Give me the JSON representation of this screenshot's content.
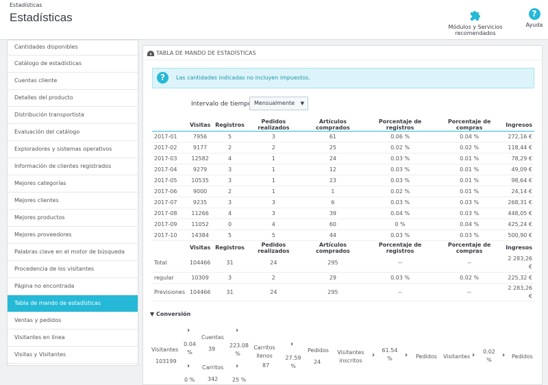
{
  "header": {
    "breadcrumb": "Estadísticas",
    "title": "Estadísticas",
    "modules_label": "Módulos y Servicios recomendados",
    "help_label": "Ayuda"
  },
  "sidebar": {
    "items": [
      {
        "label": "Cantidades disponibles"
      },
      {
        "label": "Catálogo de estadísticas"
      },
      {
        "label": "Cuentas cliente"
      },
      {
        "label": "Detalles del producto"
      },
      {
        "label": "Distribución transportista"
      },
      {
        "label": "Evaluación del catálogo"
      },
      {
        "label": "Exploradores y sistemas operativos"
      },
      {
        "label": "Información de clientes registrados"
      },
      {
        "label": "Mejores categorías"
      },
      {
        "label": "Mejores clientes"
      },
      {
        "label": "Mejores productos"
      },
      {
        "label": "Mejores proveedores"
      },
      {
        "label": "Palabras clave en el motor de búsqueda"
      },
      {
        "label": "Procedencia de los visitantes"
      },
      {
        "label": "Página no encontrada"
      },
      {
        "label": "Tabla de mando de estadísticas"
      },
      {
        "label": "Ventas y pedidos"
      },
      {
        "label": "Visitantes en línea"
      },
      {
        "label": "Visitas y Visitantes"
      }
    ],
    "active_index": 15
  },
  "panel": {
    "title": "Tabla de mando de estadísticas",
    "alert": "Las cantidades indicadas no incluyen impuestos.",
    "interval_label": "Intervalo de tiempo",
    "interval_value": "Mensualmente"
  },
  "table": {
    "headers": [
      "",
      "Visitas",
      "Registros",
      "Pedidos realizados",
      "Artículos comprados",
      "Porcentaje de registros",
      "Porcentaje de compras",
      "Ingresos"
    ],
    "rows": [
      [
        "2017-01",
        "7956",
        "5",
        "3",
        "61",
        "0.06 %",
        "0.04 %",
        "272,16 €"
      ],
      [
        "2017-02",
        "9177",
        "2",
        "2",
        "25",
        "0.02 %",
        "0.02 %",
        "118,44 €"
      ],
      [
        "2017-03",
        "12582",
        "4",
        "1",
        "24",
        "0.03 %",
        "0.01 %",
        "78,29 €"
      ],
      [
        "2017-04",
        "9279",
        "3",
        "1",
        "12",
        "0.03 %",
        "0.01 %",
        "49,09 €"
      ],
      [
        "2017-05",
        "10535",
        "3",
        "1",
        "23",
        "0.03 %",
        "0.01 %",
        "98,64 €"
      ],
      [
        "2017-06",
        "9000",
        "2",
        "1",
        "1",
        "0.02 %",
        "0.01 %",
        "24,14 €"
      ],
      [
        "2017-07",
        "9235",
        "3",
        "3",
        "6",
        "0.03 %",
        "0.03 %",
        "268,31 €"
      ],
      [
        "2017-08",
        "11266",
        "4",
        "3",
        "39",
        "0.04 %",
        "0.03 %",
        "448,05 €"
      ],
      [
        "2017-09",
        "11052",
        "0",
        "4",
        "60",
        "0 %",
        "0.04 %",
        "425,24 €"
      ],
      [
        "2017-10",
        "14384",
        "5",
        "5",
        "44",
        "0.03 %",
        "0.03 %",
        "500,90 €"
      ]
    ],
    "totals": [
      [
        "Total",
        "104466",
        "31",
        "24",
        "295",
        "--",
        "--",
        "2 283,26 €"
      ],
      [
        "regular",
        "10309",
        "3",
        "2",
        "29",
        "0.03 %",
        "0.02 %",
        "225,32 €"
      ],
      [
        "Previsiones",
        "104466",
        "31",
        "24",
        "295",
        "--",
        "--",
        "2 283,26 €"
      ]
    ]
  },
  "conversion": {
    "title": "Conversión",
    "visitantes_label": "Visitantes",
    "visitantes_value": "103199",
    "pct_to_cuentas": "0.04 %",
    "cuentas_label": "Cuentas",
    "cuentas_value": "39",
    "pct_cuentas_carritos": "223.08 %",
    "pct_to_carritos": "0 %",
    "carritos_label": "Carritos",
    "carritos_value": "342",
    "pct_carritos_llenos": "25 %",
    "carritos_llenos_label": "Carritos llenos",
    "carritos_llenos_value": "87",
    "pct_llenos_pedidos": "27.59 %",
    "pedidos_label": "Pedidos",
    "pedidos_value": "24",
    "inscritos_label": "Visitantes inscritos",
    "pct_inscritos": "61.54 %",
    "pedidos_label_2": "Pedidos",
    "visitantes_label_2": "Visitantes",
    "pct_visitantes": "0.02 %",
    "pedidos_label_3": "Pedidos"
  }
}
